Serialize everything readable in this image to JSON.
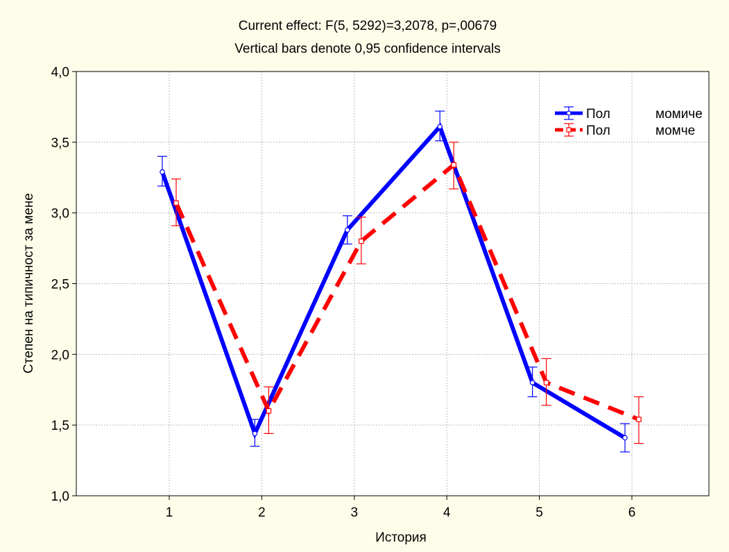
{
  "chart_data": {
    "type": "line",
    "title": "Current effect: F(5, 5292)=3,2078, p=,00679",
    "subtitle": "Vertical bars denote 0,95 confidence intervals",
    "xlabel": "История",
    "ylabel": "Степен на типичност за мене",
    "categories": [
      "1",
      "2",
      "3",
      "4",
      "5",
      "6"
    ],
    "yticks": [
      "1,0",
      "1,5",
      "2,0",
      "2,5",
      "3,0",
      "3,5",
      "4,0"
    ],
    "ylim": [
      1.0,
      4.0
    ],
    "grid": true,
    "legend_position": "top-right",
    "series": [
      {
        "name": "Пол",
        "level": "момиче",
        "color": "#0000ff",
        "line_style": "solid",
        "marker": "circle",
        "values": [
          3.29,
          1.44,
          2.88,
          3.61,
          1.8,
          1.41
        ],
        "ci_low": [
          3.19,
          1.35,
          2.78,
          3.51,
          1.7,
          1.31
        ],
        "ci_high": [
          3.4,
          1.54,
          2.98,
          3.72,
          1.91,
          1.51
        ]
      },
      {
        "name": "Пол",
        "level": "момче",
        "color": "#ff0000",
        "line_style": "dashed",
        "marker": "square",
        "values": [
          3.07,
          1.6,
          2.8,
          3.34,
          1.8,
          1.54
        ],
        "ci_low": [
          2.91,
          1.44,
          2.64,
          3.17,
          1.64,
          1.37
        ],
        "ci_high": [
          3.24,
          1.77,
          2.97,
          3.5,
          1.97,
          1.7
        ]
      }
    ]
  }
}
